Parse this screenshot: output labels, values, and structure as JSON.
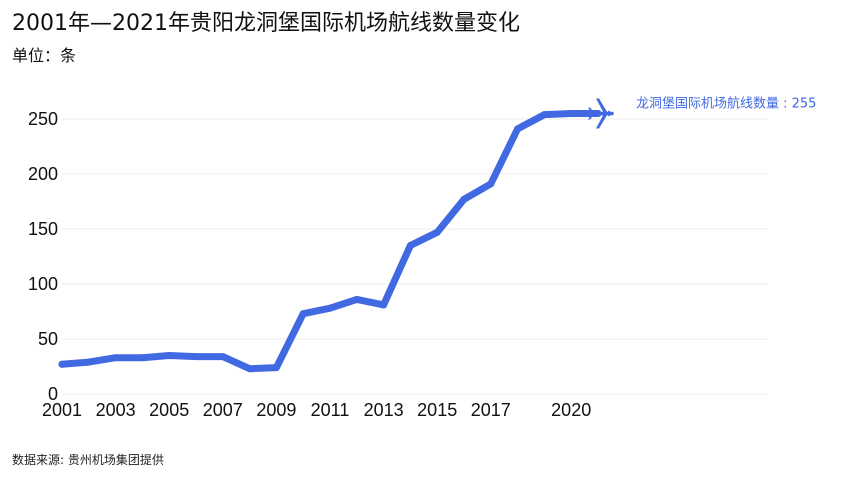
{
  "title": "2001年—2021年贵阳龙洞堡国际机场航线数量变化",
  "subtitle": "单位：条",
  "source": "数据来源: 贵州机场集团提供",
  "colors": {
    "line": "#4169e1",
    "grid": "#eeeeee",
    "text": "#111111"
  },
  "chart_data": {
    "type": "line",
    "title": "2001年—2021年贵阳龙洞堡国际机场航线数量变化",
    "ylabel": "单位：条",
    "xlabel": "",
    "x": [
      2001,
      2002,
      2003,
      2004,
      2005,
      2006,
      2007,
      2008,
      2009,
      2010,
      2011,
      2012,
      2013,
      2014,
      2015,
      2016,
      2017,
      2018,
      2019,
      2020,
      2021
    ],
    "x_tick_labels": [
      "2001",
      "2003",
      "2005",
      "2007",
      "2009",
      "2011",
      "2013",
      "2015",
      "2017",
      "2020"
    ],
    "x_tick_values": [
      2001,
      2003,
      2005,
      2007,
      2009,
      2011,
      2013,
      2015,
      2017,
      2020
    ],
    "ylim": [
      0,
      250
    ],
    "y_ticks": [
      0,
      50,
      100,
      150,
      200,
      250
    ],
    "grid": true,
    "series": [
      {
        "name": "",
        "values": [
          27,
          29,
          33,
          33,
          35,
          34,
          34,
          23,
          24,
          73,
          78,
          86,
          81,
          135,
          147,
          177,
          191,
          241,
          254,
          255,
          255
        ]
      }
    ],
    "end_marker": "airplane-icon",
    "annotation": "龙洞堡国际机场航线数量 : 255"
  }
}
